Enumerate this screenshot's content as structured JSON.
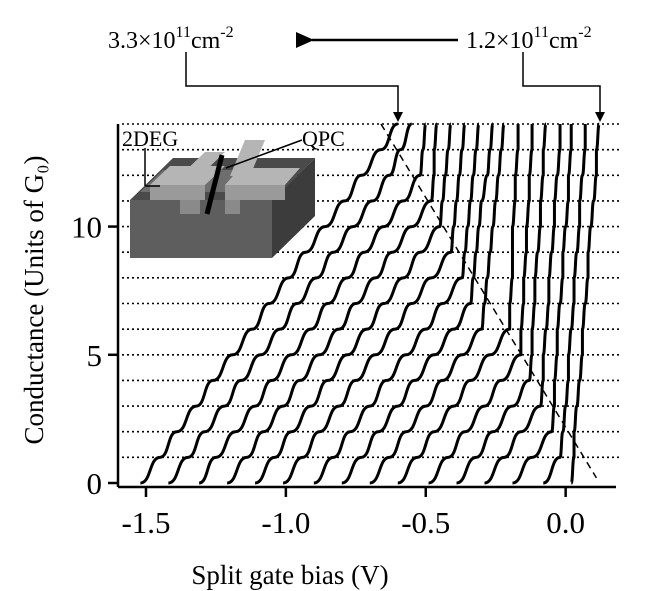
{
  "chart_data": {
    "type": "line",
    "x_label": "Split gate bias (V)",
    "y_label": "Conductance (Units of G₀)",
    "xlim": [
      -1.6,
      0.18
    ],
    "ylim": [
      0,
      14
    ],
    "xticks": [
      -1.5,
      {
        "value": -1,
        "label": "-1.0"
      },
      -0.5,
      {
        "value": 0,
        "label": "0.0"
      }
    ],
    "yticks": [
      0,
      5,
      10
    ],
    "ygrid": [
      1,
      2,
      3,
      4,
      5,
      6,
      7,
      8,
      9,
      10,
      11,
      12,
      13,
      14
    ],
    "color": "#000000",
    "dashed_line": {
      "x": [
        -0.66,
        0.11
      ],
      "y": [
        14,
        0.2
      ]
    },
    "annotations": [
      {
        "text": "3.3×10",
        "sup": "11",
        "unit": "cm",
        "unit_sup": "-2"
      },
      {
        "text": "1.2×10",
        "sup": "11",
        "unit": "cm",
        "unit_sup": "-2"
      }
    ],
    "inset_labels": [
      "2DEG",
      "QPC"
    ],
    "series": [
      {
        "x": [
          -1.52,
          -1.45,
          -1.39,
          -1.32,
          -1.26,
          -1.19,
          -1.12,
          -1.06,
          -0.99,
          -0.93,
          -0.86,
          -0.79,
          -0.73,
          -0.66,
          -0.6
        ],
        "values": [
          0,
          1,
          2,
          3,
          4,
          5,
          6,
          7,
          8,
          9,
          10,
          11,
          12,
          13,
          14
        ]
      },
      {
        "x": [
          -1.42,
          -1.35,
          -1.29,
          -1.22,
          -1.16,
          -1.09,
          -1.02,
          -0.96,
          -0.89,
          -0.83,
          -0.76,
          -0.69,
          -0.63,
          -0.59,
          -0.55
        ],
        "values": [
          0,
          1,
          2,
          3,
          4,
          5,
          6,
          7,
          8,
          9,
          10,
          11,
          12,
          13,
          14
        ]
      },
      {
        "x": [
          -1.31,
          -1.25,
          -1.18,
          -1.11,
          -1.05,
          -0.98,
          -0.91,
          -0.85,
          -0.78,
          -0.72,
          -0.65,
          -0.58,
          -0.52,
          -0.51,
          -0.5
        ],
        "values": [
          0,
          1,
          2,
          3,
          4,
          5,
          6,
          7,
          8,
          9,
          10,
          11,
          12,
          13,
          14
        ]
      },
      {
        "x": [
          -1.21,
          -1.14,
          -1.08,
          -1.01,
          -0.95,
          -0.88,
          -0.81,
          -0.75,
          -0.68,
          -0.62,
          -0.55,
          -0.48,
          -0.47,
          -0.47,
          -0.46
        ],
        "values": [
          0,
          1,
          2,
          3,
          4,
          5,
          6,
          7,
          8,
          9,
          10,
          11,
          12,
          13,
          14
        ]
      },
      {
        "x": [
          -1.11,
          -1.04,
          -0.98,
          -0.91,
          -0.85,
          -0.78,
          -0.71,
          -0.65,
          -0.58,
          -0.52,
          -0.45,
          -0.44,
          -0.43,
          -0.42,
          -0.41
        ],
        "values": [
          0,
          1,
          2,
          3,
          4,
          5,
          6,
          7,
          8,
          9,
          10,
          11,
          12,
          13,
          14
        ]
      },
      {
        "x": [
          -1.01,
          -0.94,
          -0.88,
          -0.81,
          -0.75,
          -0.68,
          -0.61,
          -0.55,
          -0.48,
          -0.41,
          -0.4,
          -0.39,
          -0.38,
          -0.37,
          -0.36
        ],
        "values": [
          0,
          1,
          2,
          3,
          4,
          5,
          6,
          7,
          8,
          9,
          10,
          11,
          12,
          13,
          14
        ]
      },
      {
        "x": [
          -0.9,
          -0.83,
          -0.77,
          -0.7,
          -0.64,
          -0.57,
          -0.5,
          -0.44,
          -0.37,
          -0.36,
          -0.35,
          -0.34,
          -0.33,
          -0.32,
          -0.31
        ],
        "values": [
          0,
          1,
          2,
          3,
          4,
          5,
          6,
          7,
          8,
          9,
          10,
          11,
          12,
          13,
          14
        ]
      },
      {
        "x": [
          -0.8,
          -0.73,
          -0.67,
          -0.6,
          -0.54,
          -0.47,
          -0.4,
          -0.34,
          -0.33,
          -0.32,
          -0.31,
          -0.3,
          -0.28,
          -0.27,
          -0.26
        ],
        "values": [
          0,
          1,
          2,
          3,
          4,
          5,
          6,
          7,
          8,
          9,
          10,
          11,
          12,
          13,
          14
        ]
      },
      {
        "x": [
          -0.7,
          -0.63,
          -0.57,
          -0.5,
          -0.44,
          -0.37,
          -0.3,
          -0.29,
          -0.28,
          -0.27,
          -0.26,
          -0.25,
          -0.24,
          -0.23,
          -0.22
        ],
        "values": [
          0,
          1,
          2,
          3,
          4,
          5,
          6,
          7,
          8,
          9,
          10,
          11,
          12,
          13,
          14
        ]
      },
      {
        "x": [
          -0.6,
          -0.53,
          -0.47,
          -0.4,
          -0.34,
          -0.27,
          -0.2,
          -0.2,
          -0.19,
          -0.19,
          -0.19,
          -0.18,
          -0.18,
          -0.17,
          -0.17
        ],
        "values": [
          0,
          1,
          2,
          3,
          4,
          5,
          6,
          7,
          8,
          9,
          10,
          11,
          12,
          13,
          14
        ]
      },
      {
        "x": [
          -0.49,
          -0.42,
          -0.36,
          -0.29,
          -0.23,
          -0.16,
          -0.16,
          -0.15,
          -0.15,
          -0.14,
          -0.14,
          -0.13,
          -0.13,
          -0.12,
          -0.12
        ],
        "values": [
          0,
          1,
          2,
          3,
          4,
          5,
          6,
          7,
          8,
          9,
          10,
          11,
          12,
          13,
          14
        ]
      },
      {
        "x": [
          -0.39,
          -0.32,
          -0.26,
          -0.19,
          -0.13,
          -0.12,
          -0.12,
          -0.11,
          -0.11,
          -0.1,
          -0.09,
          -0.09,
          -0.08,
          -0.08,
          -0.07
        ],
        "values": [
          0,
          1,
          2,
          3,
          4,
          5,
          6,
          7,
          8,
          9,
          10,
          11,
          12,
          13,
          14
        ]
      },
      {
        "x": [
          -0.29,
          -0.22,
          -0.16,
          -0.09,
          -0.08,
          -0.08,
          -0.07,
          -0.06,
          -0.06,
          -0.05,
          -0.04,
          -0.04,
          -0.03,
          -0.02,
          -0.02
        ],
        "values": [
          0,
          1,
          2,
          3,
          4,
          5,
          6,
          7,
          8,
          9,
          10,
          11,
          12,
          13,
          14
        ]
      },
      {
        "x": [
          -0.19,
          -0.12,
          -0.05,
          -0.04,
          -0.04,
          -0.03,
          -0.03,
          -0.02,
          -0.01,
          -0.01,
          0,
          0.01,
          0.01,
          0.02,
          0.02
        ],
        "values": [
          0,
          1,
          2,
          3,
          4,
          5,
          6,
          7,
          8,
          9,
          10,
          11,
          12,
          13,
          14
        ]
      },
      {
        "x": [
          -0.08,
          -0.02,
          -0.01,
          0,
          0.01,
          0.01,
          0.02,
          0.03,
          0.03,
          0.04,
          0.05,
          0.05,
          0.06,
          0.07,
          0.07
        ],
        "values": [
          0,
          1,
          2,
          3,
          4,
          5,
          6,
          7,
          8,
          9,
          10,
          11,
          12,
          13,
          14
        ]
      },
      {
        "x": [
          0.02,
          0.03,
          0.03,
          0.04,
          0.05,
          0.06,
          0.06,
          0.07,
          0.08,
          0.08,
          0.09,
          0.1,
          0.11,
          0.11,
          0.12
        ],
        "values": [
          0,
          1,
          2,
          3,
          4,
          5,
          6,
          7,
          8,
          9,
          10,
          11,
          12,
          13,
          14
        ]
      }
    ]
  }
}
